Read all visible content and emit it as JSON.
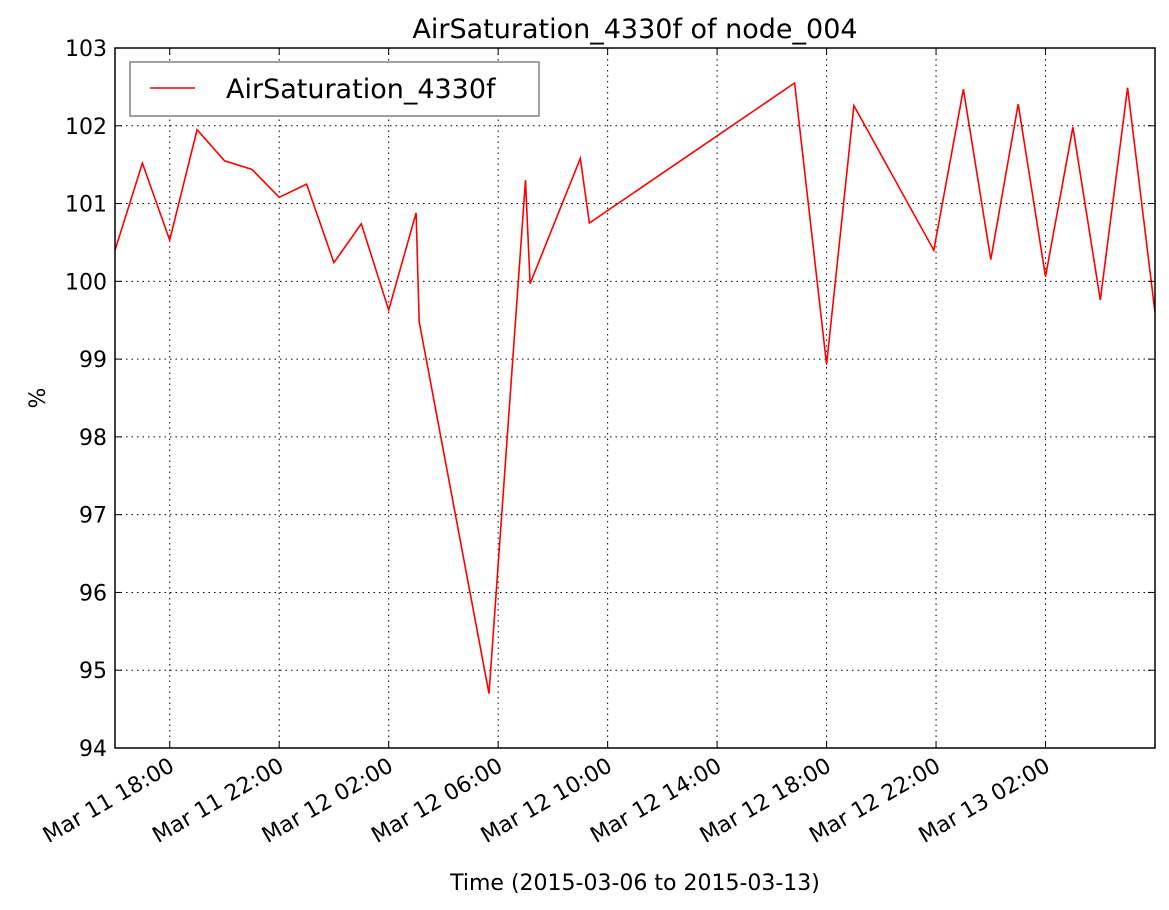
{
  "chart_data": {
    "type": "line",
    "title": "AirSaturation_4330f of node_004",
    "xlabel": "Time (2015-03-06 to 2015-03-13)",
    "ylabel": "%",
    "ylim": [
      94,
      103
    ],
    "yticks": [
      94,
      95,
      96,
      97,
      98,
      99,
      100,
      101,
      102,
      103
    ],
    "xlim": [
      "2015-03-11 16:00",
      "2015-03-13 06:00"
    ],
    "xticks": [
      {
        "time": "2015-03-11 18:00",
        "label": "Mar 11 18:00"
      },
      {
        "time": "2015-03-11 22:00",
        "label": "Mar 11 22:00"
      },
      {
        "time": "2015-03-12 02:00",
        "label": "Mar 12 02:00"
      },
      {
        "time": "2015-03-12 06:00",
        "label": "Mar 12 06:00"
      },
      {
        "time": "2015-03-12 10:00",
        "label": "Mar 12 10:00"
      },
      {
        "time": "2015-03-12 14:00",
        "label": "Mar 12 14:00"
      },
      {
        "time": "2015-03-12 18:00",
        "label": "Mar 12 18:00"
      },
      {
        "time": "2015-03-12 22:00",
        "label": "Mar 12 22:00"
      },
      {
        "time": "2015-03-13 02:00",
        "label": "Mar 13 02:00"
      }
    ],
    "grid": true,
    "legend_position": "top-left",
    "series": [
      {
        "name": "AirSaturation_4330f",
        "color": "#ff0000",
        "points": [
          {
            "x": "2015-03-11 16:00",
            "y": 100.4
          },
          {
            "x": "2015-03-11 17:00",
            "y": 101.52
          },
          {
            "x": "2015-03-11 18:00",
            "y": 100.53
          },
          {
            "x": "2015-03-11 19:00",
            "y": 101.95
          },
          {
            "x": "2015-03-11 20:00",
            "y": 101.55
          },
          {
            "x": "2015-03-11 21:00",
            "y": 101.44
          },
          {
            "x": "2015-03-11 22:00",
            "y": 101.08
          },
          {
            "x": "2015-03-11 23:00",
            "y": 101.25
          },
          {
            "x": "2015-03-12 00:00",
            "y": 100.24
          },
          {
            "x": "2015-03-12 01:00",
            "y": 100.74
          },
          {
            "x": "2015-03-12 02:00",
            "y": 99.63
          },
          {
            "x": "2015-03-12 03:00",
            "y": 100.88
          },
          {
            "x": "2015-03-12 03:07",
            "y": 99.48
          },
          {
            "x": "2015-03-12 05:40",
            "y": 94.7
          },
          {
            "x": "2015-03-12 07:00",
            "y": 101.3
          },
          {
            "x": "2015-03-12 07:10",
            "y": 99.97
          },
          {
            "x": "2015-03-12 09:00",
            "y": 101.58
          },
          {
            "x": "2015-03-12 09:20",
            "y": 100.75
          },
          {
            "x": "2015-03-12 16:50",
            "y": 102.55
          },
          {
            "x": "2015-03-12 18:00",
            "y": 98.93
          },
          {
            "x": "2015-03-12 19:00",
            "y": 102.26
          },
          {
            "x": "2015-03-12 21:55",
            "y": 100.4
          },
          {
            "x": "2015-03-12 23:00",
            "y": 102.47
          },
          {
            "x": "2015-03-13 00:00",
            "y": 100.28
          },
          {
            "x": "2015-03-13 01:00",
            "y": 102.28
          },
          {
            "x": "2015-03-13 02:00",
            "y": 100.06
          },
          {
            "x": "2015-03-13 03:00",
            "y": 101.98
          },
          {
            "x": "2015-03-13 04:00",
            "y": 99.76
          },
          {
            "x": "2015-03-13 05:00",
            "y": 102.49
          },
          {
            "x": "2015-03-13 06:00",
            "y": 99.6
          }
        ]
      }
    ]
  }
}
